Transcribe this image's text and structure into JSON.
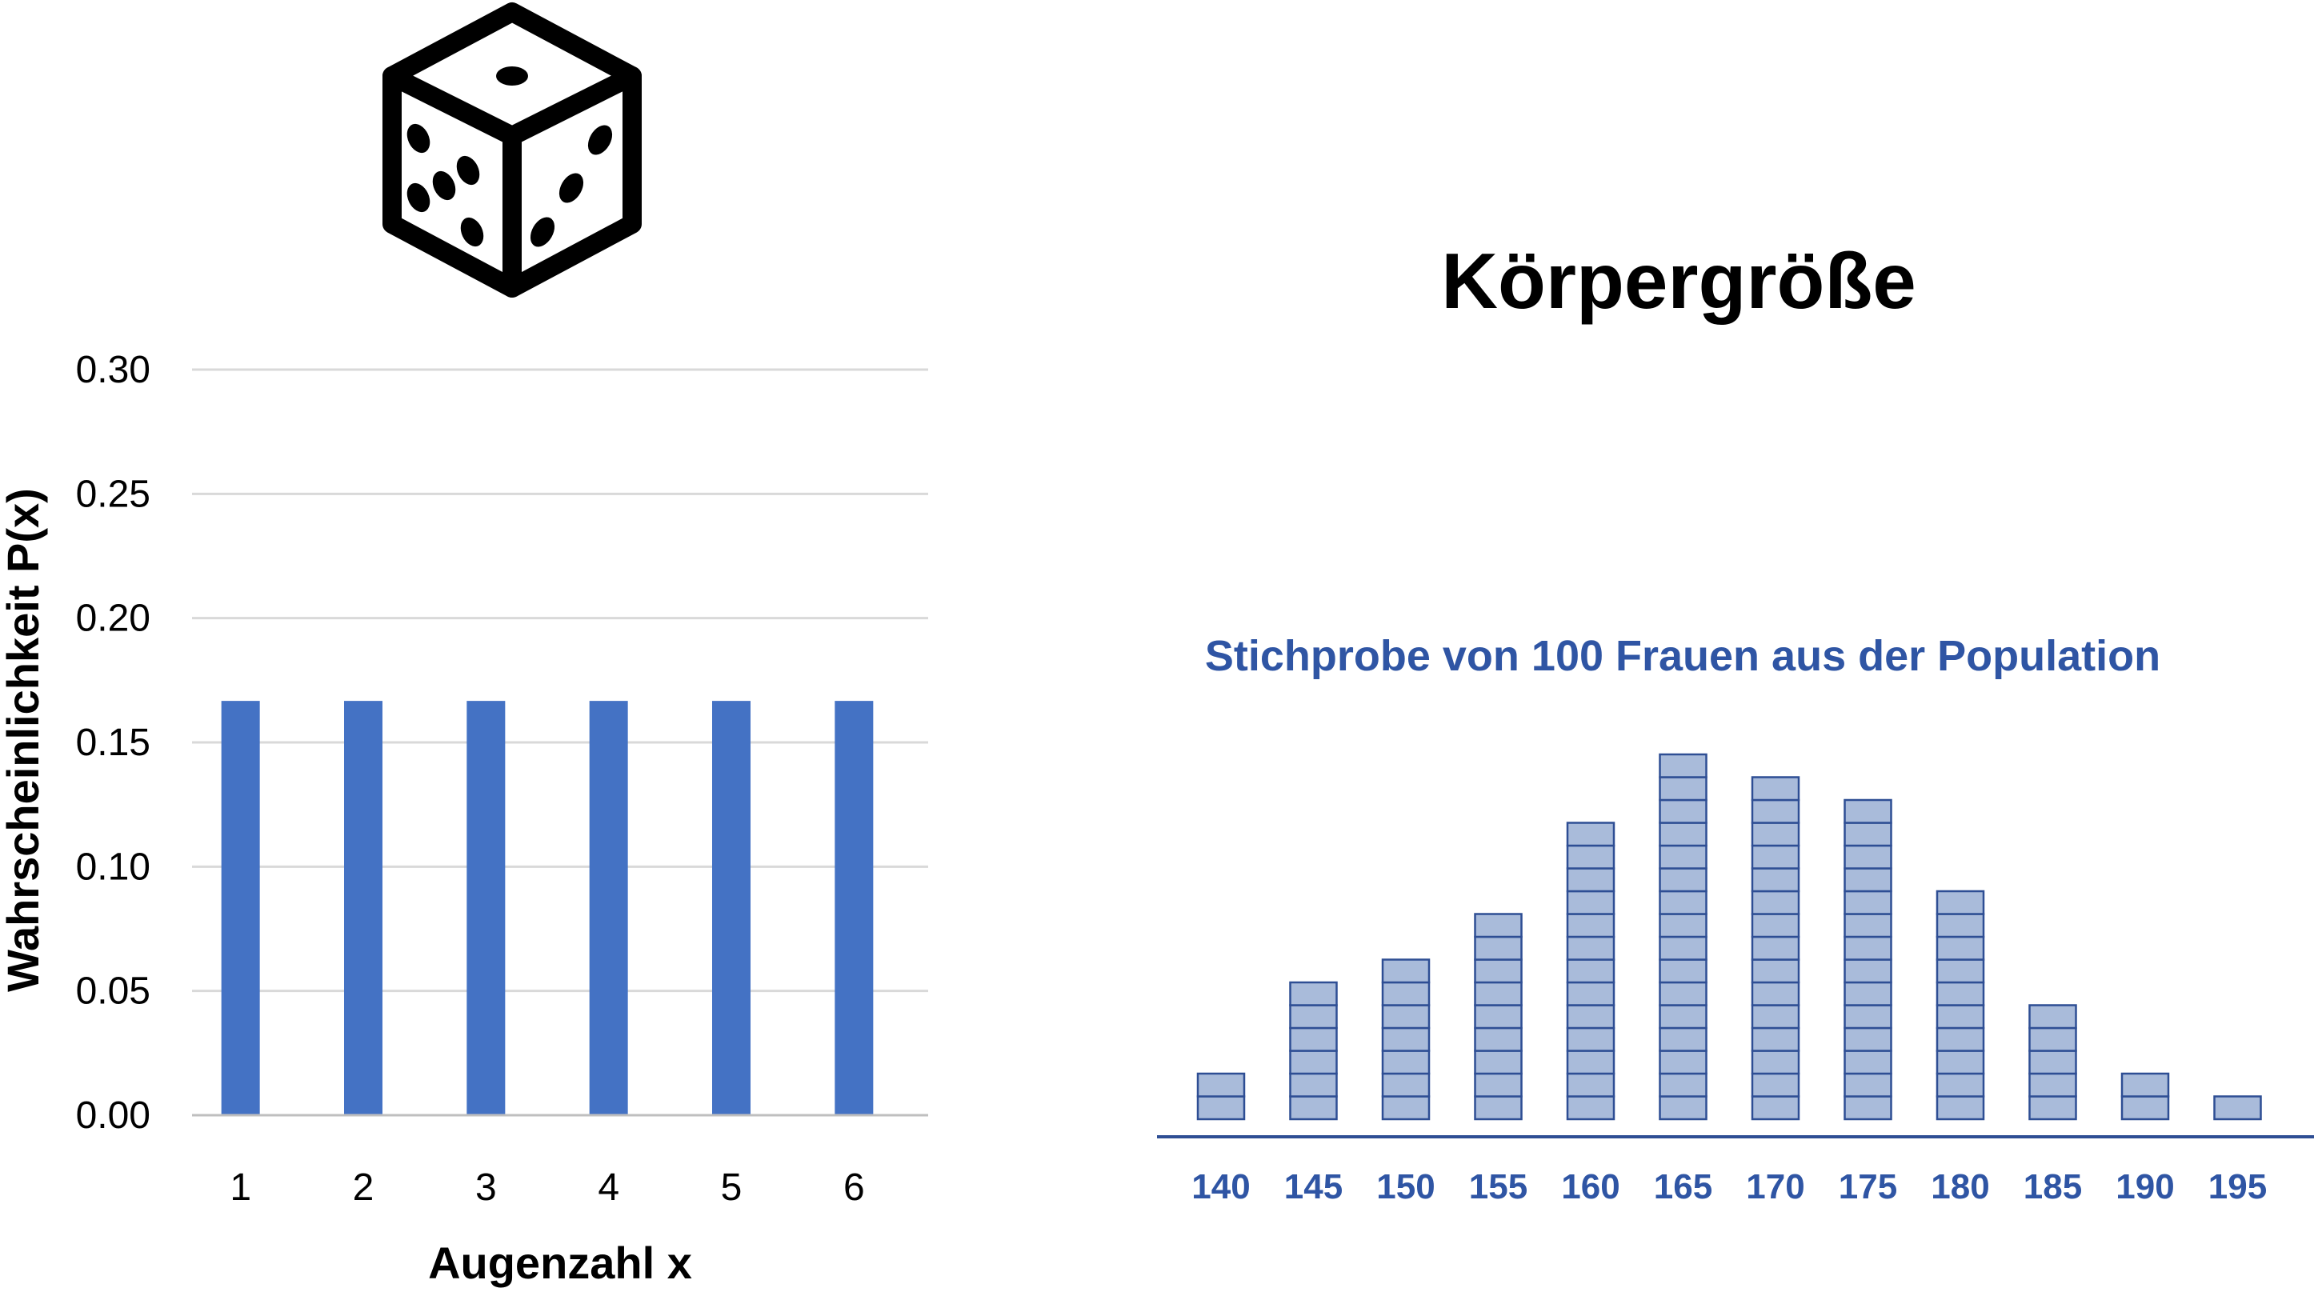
{
  "colors": {
    "bar": "#4472C4",
    "hist_fill": "#A9BBDA",
    "hist_stroke": "#2E4E94",
    "label_blue": "#2F55A4",
    "grid": "#D9D9D9",
    "axis": "#333333"
  },
  "icons": {
    "die": "die-icon"
  },
  "chart_data": [
    {
      "type": "bar",
      "title": "",
      "xlabel": "Augenzahl x",
      "ylabel": "Wahrscheinlichkeit P(x)",
      "categories": [
        "1",
        "2",
        "3",
        "4",
        "5",
        "6"
      ],
      "values": [
        0.1667,
        0.1667,
        0.1667,
        0.1667,
        0.1667,
        0.1667
      ],
      "ylim": [
        0,
        0.3
      ],
      "yticks": [
        "0.00",
        "0.05",
        "0.10",
        "0.15",
        "0.20",
        "0.25",
        "0.30"
      ],
      "grid": true
    },
    {
      "type": "bar",
      "title": "Körpergröße",
      "subtitle": "Stichprobe von 100 Frauen aus der Population",
      "categories": [
        "140",
        "145",
        "150",
        "155",
        "160",
        "165",
        "170",
        "175",
        "180",
        "185",
        "190",
        "195"
      ],
      "values": [
        2,
        6,
        7,
        9,
        13,
        16,
        15,
        14,
        10,
        5,
        2,
        1
      ],
      "grid": false
    }
  ]
}
